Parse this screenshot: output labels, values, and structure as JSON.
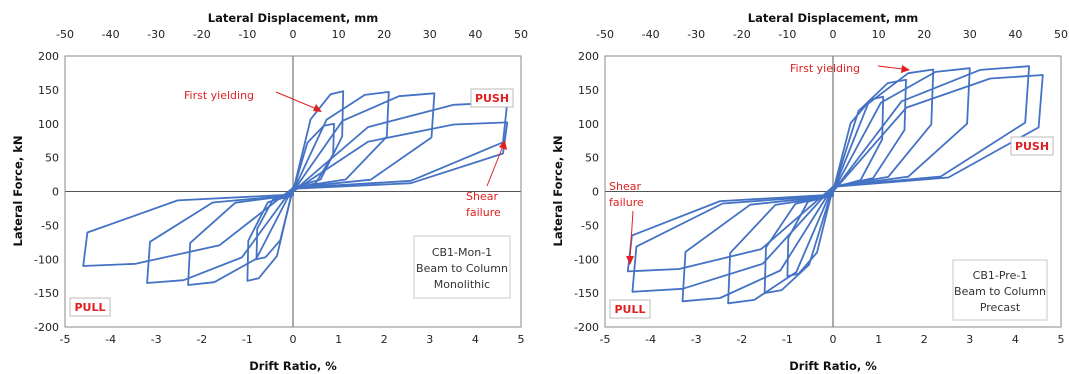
{
  "colors": {
    "curve": "#4472c4",
    "annotation": "#e02020",
    "axis": "#555555"
  },
  "chart_data": [
    {
      "type": "line",
      "title": "",
      "xlabel": "Drift Ratio, %",
      "x2label": "Lateral Displacement, mm",
      "ylabel": "Lateral Force, kN",
      "xlim": [
        -5,
        5
      ],
      "x2lim": [
        -50,
        50
      ],
      "ylim": [
        -200,
        200
      ],
      "xticks": [
        "-5",
        "-4",
        "-3",
        "-2",
        "-1",
        "0",
        "1",
        "2",
        "3",
        "4",
        "5"
      ],
      "x2ticks": [
        "-50",
        "-40",
        "-30",
        "-20",
        "-10",
        "0",
        "10",
        "20",
        "30",
        "40",
        "50"
      ],
      "yticks": [
        "-200",
        "-150",
        "-100",
        "-50",
        "0",
        "50",
        "100",
        "150",
        "200"
      ],
      "grid": false,
      "legend": "none",
      "specimen_lines": [
        "CB1-Mon-1",
        "Beam to Column",
        "Monolithic"
      ],
      "labels": {
        "push": "PUSH",
        "pull": "PULL",
        "first_yielding": "First yielding",
        "shear_line1": "Shear",
        "shear_line2": "failure"
      },
      "loops": [
        {
          "pos": [
            0.9,
            100
          ],
          "neg": [
            -0.8,
            -100
          ]
        },
        {
          "pos": [
            1.1,
            148
          ],
          "neg": [
            -1.0,
            -132
          ]
        },
        {
          "pos": [
            2.1,
            147
          ],
          "neg": [
            -2.3,
            -138
          ]
        },
        {
          "pos": [
            3.1,
            145
          ],
          "neg": [
            -3.2,
            -135
          ]
        },
        {
          "pos": [
            4.7,
            132
          ],
          "neg": [
            -4.6,
            -110
          ]
        },
        {
          "pos": [
            4.7,
            102
          ],
          "neg": [
            -0.2,
            -10
          ]
        }
      ]
    },
    {
      "type": "line",
      "title": "",
      "xlabel": "Drift Ratio, %",
      "x2label": "Lateral Displacement, mm",
      "ylabel": "Lateral Force, kN",
      "xlim": [
        -5,
        5
      ],
      "x2lim": [
        -50,
        50
      ],
      "ylim": [
        -200,
        200
      ],
      "xticks": [
        "-5",
        "-4",
        "-3",
        "-2",
        "-1",
        "0",
        "1",
        "2",
        "3",
        "4",
        "5"
      ],
      "x2ticks": [
        "-50",
        "-40",
        "-30",
        "-20",
        "-10",
        "0",
        "10",
        "20",
        "30",
        "40",
        "50"
      ],
      "yticks": [
        "-200",
        "-150",
        "-100",
        "-50",
        "0",
        "50",
        "100",
        "150",
        "200"
      ],
      "grid": false,
      "legend": "none",
      "specimen_lines": [
        "CB1-Pre-1",
        "Beam to Column",
        "Precast"
      ],
      "labels": {
        "push": "PUSH",
        "pull": "PULL",
        "first_yielding": "First yielding",
        "shear_line1": "Shear",
        "shear_line2": "failure"
      },
      "loops": [
        {
          "pos": [
            1.1,
            140
          ],
          "neg": [
            -1.0,
            -125
          ]
        },
        {
          "pos": [
            1.6,
            165
          ],
          "neg": [
            -1.5,
            -150
          ]
        },
        {
          "pos": [
            2.2,
            180
          ],
          "neg": [
            -2.3,
            -165
          ]
        },
        {
          "pos": [
            3.0,
            182
          ],
          "neg": [
            -3.3,
            -162
          ]
        },
        {
          "pos": [
            4.3,
            185
          ],
          "neg": [
            -4.4,
            -148
          ]
        },
        {
          "pos": [
            4.6,
            172
          ],
          "neg": [
            -4.5,
            -118
          ]
        }
      ]
    }
  ]
}
